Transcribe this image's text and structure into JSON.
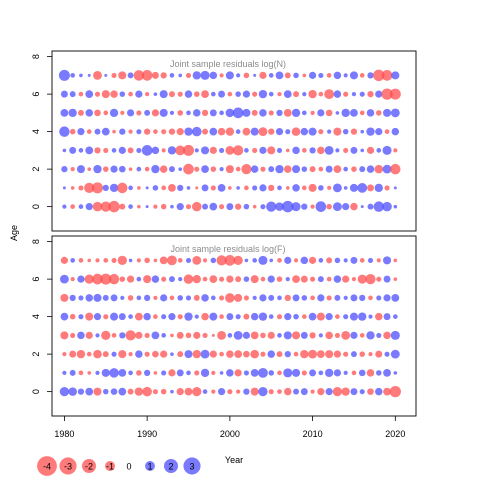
{
  "figure": {
    "ylabel": "Age",
    "xlabel": "Year"
  },
  "chart_data": [
    {
      "type": "scatter",
      "title": "Joint sample residuals log(N)",
      "xlim": [
        1978.5,
        2022.5
      ],
      "ylim": [
        -1.3,
        8.3
      ],
      "y_ticks": [
        0,
        2,
        4,
        6,
        8
      ],
      "x_ticks": [
        1980,
        1990,
        2000,
        2010,
        2020
      ],
      "years": [
        1980,
        2020
      ],
      "ages": [
        0,
        7
      ],
      "residuals": [
        [
          0.4,
          -0.5,
          0.5,
          1.2,
          -2.1,
          -2.4,
          -3.0,
          -0.8,
          0.5,
          -0.3,
          0.2,
          -0.4,
          -0.7,
          0.3,
          1.2,
          -0.6,
          -2.1,
          0.8,
          1.4,
          -0.6,
          1.1,
          -0.9,
          0.7,
          -0.3,
          0.6,
          2.4,
          1.7,
          3.0,
          1.9,
          0.9,
          -0.4,
          2.6,
          -0.7,
          1.8,
          1.2,
          -1.3,
          0.2,
          0.8,
          2.5,
          2.1,
          0.3
        ],
        [
          0.2,
          -0.3,
          -0.6,
          -2.4,
          -2.8,
          0.9,
          1.6,
          -2.5,
          0.5,
          -0.3,
          0.2,
          0.7,
          -0.5,
          -1.4,
          0.9,
          0.3,
          -0.2,
          1.1,
          -0.6,
          1.4,
          -0.3,
          0.3,
          -0.5,
          0.6,
          1.2,
          -0.9,
          0.5,
          -0.3,
          1.3,
          -0.5,
          -1.5,
          0.7,
          -0.4,
          1.8,
          0.3,
          1.5,
          2.2,
          -1.1,
          1.6,
          -0.6,
          0.2
        ],
        [
          0.9,
          -0.4,
          1.5,
          -0.3,
          1.6,
          -0.7,
          1.2,
          1.0,
          -0.3,
          0.5,
          -0.5,
          1.6,
          -1.3,
          0.8,
          0.3,
          -2.6,
          -0.6,
          1.4,
          -0.7,
          0.4,
          -1.5,
          -0.5,
          -2.4,
          1.3,
          -0.6,
          0.8,
          1.6,
          -1.3,
          1.5,
          0.7,
          -0.8,
          -0.5,
          1.1,
          -1.4,
          0.5,
          -0.7,
          0.8,
          1.3,
          -1.7,
          1.8,
          -2.5
        ],
        [
          0.3,
          1.1,
          0.5,
          1.4,
          -0.9,
          -0.6,
          0.5,
          1.2,
          -0.8,
          0.6,
          2.6,
          1.3,
          -0.4,
          1.6,
          -2.2,
          -2.8,
          0.4,
          1.5,
          -1.2,
          0.6,
          -1.8,
          -2.4,
          0.5,
          -0.6,
          1.2,
          -1.5,
          0.6,
          -0.3,
          1.3,
          -0.5,
          0.9,
          -1.3,
          1.8,
          0.4,
          -0.6,
          1.1,
          0.3,
          -1.2,
          0.5,
          1.9,
          -0.4
        ],
        [
          2.5,
          -0.7,
          1.2,
          -0.5,
          0.8,
          1.4,
          -0.3,
          0.9,
          -0.4,
          0.6,
          -0.9,
          -0.5,
          -0.6,
          -0.9,
          -1.2,
          1.6,
          2.1,
          -0.8,
          1.4,
          -1.3,
          -1.6,
          0.5,
          -1.4,
          1.5,
          -1.8,
          -0.9,
          1.2,
          0.6,
          -1.7,
          1.3,
          1.5,
          -0.6,
          0.4,
          -1.5,
          0.7,
          -0.9,
          0.3,
          1.6,
          1.2,
          -0.5,
          1.3
        ],
        [
          1.4,
          1.6,
          -0.8,
          1.3,
          -1.0,
          -0.5,
          1.6,
          -0.4,
          1.2,
          -0.6,
          0.8,
          -1.2,
          1.5,
          0.4,
          -0.7,
          0.5,
          1.3,
          -0.9,
          1.1,
          0.5,
          1.7,
          2.6,
          1.5,
          -0.8,
          1.3,
          -0.6,
          0.9,
          -1.4,
          1.6,
          0.5,
          -0.4,
          1.2,
          -1.0,
          0.3,
          1.6,
          1.4,
          -0.5,
          1.3,
          -0.7,
          1.5,
          1.8
        ],
        [
          1.1,
          0.8,
          -0.5,
          1.4,
          -0.6,
          -1.5,
          -1.3,
          0.7,
          -0.5,
          1.2,
          -0.4,
          0.3,
          1.5,
          -0.8,
          -0.6,
          1.3,
          -0.7,
          -1.4,
          0.5,
          1.1,
          -0.5,
          0.7,
          1.2,
          -0.6,
          1.6,
          0.5,
          -0.4,
          1.4,
          -0.8,
          0.4,
          -1.6,
          -0.5,
          -2.2,
          1.3,
          -0.6,
          0.4,
          0.6,
          -0.9,
          1.2,
          -2.9,
          -2.8
        ],
        [
          2.8,
          0.5,
          0.3,
          0.2,
          -1.8,
          0.2,
          -0.6,
          -1.5,
          0.8,
          -2.5,
          -2.6,
          -1.1,
          -0.9,
          0.5,
          0.3,
          -0.6,
          1.6,
          1.9,
          1.3,
          -0.4,
          1.5,
          0.4,
          -0.7,
          0.2,
          -1.2,
          0.5,
          1.4,
          -0.8,
          0.7,
          -0.3,
          1.2,
          0.6,
          -0.5,
          1.3,
          0.4,
          1.5,
          -0.5,
          0.9,
          -3.0,
          -2.6,
          1.5
        ]
      ]
    },
    {
      "type": "scatter",
      "title": "Joint sample residuals log(F)",
      "xlim": [
        1978.5,
        2022.5
      ],
      "ylim": [
        -1.3,
        8.3
      ],
      "y_ticks": [
        0,
        2,
        4,
        6,
        8
      ],
      "x_ticks": [
        1980,
        1990,
        2000,
        2010,
        2020
      ],
      "years": [
        1980,
        2020
      ],
      "ages": [
        0,
        7
      ],
      "residuals": [
        [
          2.0,
          1.7,
          0.9,
          1.4,
          -1.5,
          0.7,
          1.0,
          1.4,
          -0.8,
          -1.6,
          -2.1,
          -0.6,
          -0.7,
          0.3,
          -1.2,
          -1.4,
          -2.0,
          0.5,
          -0.4,
          1.2,
          -0.6,
          -0.4,
          0.9,
          -1.5,
          2.0,
          -0.6,
          -0.5,
          -1.3,
          0.8,
          1.1,
          -0.4,
          -1.2,
          1.2,
          -2.0,
          -1.6,
          1.1,
          0.6,
          -1.0,
          1.3,
          -1.4,
          -2.9
        ],
        [
          0.4,
          0.8,
          -0.5,
          -0.3,
          0.4,
          1.5,
          2.1,
          1.4,
          0.5,
          -0.7,
          0.9,
          -0.3,
          0.6,
          -1.2,
          1.1,
          0.5,
          -0.6,
          1.6,
          -0.4,
          0.3,
          1.3,
          -1.2,
          0.6,
          1.4,
          2.2,
          0.7,
          -0.5,
          1.9,
          1.5,
          -0.6,
          1.1,
          0.5,
          1.6,
          1.2,
          0.4,
          -0.5,
          1.0,
          -1.3,
          0.7,
          1.4,
          0.3
        ],
        [
          -0.4,
          -1.1,
          -1.6,
          -0.5,
          -1.7,
          -0.8,
          0.6,
          -1.5,
          -0.4,
          1.3,
          -0.6,
          -1.0,
          -1.2,
          0.3,
          -0.8,
          1.5,
          -1.6,
          1.8,
          -1.2,
          -0.5,
          -1.3,
          -1.4,
          -1.0,
          -1.7,
          -0.6,
          1.3,
          -0.8,
          0.9,
          -0.5,
          -1.6,
          -1.8,
          -1.4,
          -1.5,
          -1.2,
          -0.6,
          0.8,
          -0.7,
          -0.4,
          -1.1,
          0.6,
          1.8
        ],
        [
          -1.5,
          -0.6,
          1.3,
          -1.2,
          0.4,
          -2.0,
          -0.5,
          0.9,
          -2.4,
          -1.2,
          -0.6,
          1.4,
          0.5,
          -0.3,
          -1.1,
          -0.7,
          -1.2,
          -0.6,
          -0.2,
          -1.8,
          0.5,
          1.8,
          1.2,
          -1.4,
          -0.7,
          -1.2,
          0.5,
          1.5,
          -1.5,
          1.1,
          -0.9,
          0.4,
          -1.3,
          -0.6,
          -1.8,
          1.2,
          -0.5,
          1.6,
          0.6,
          -1.3,
          1.9
        ],
        [
          1.4,
          -0.7,
          0.6,
          -1.5,
          1.2,
          -0.6,
          1.5,
          1.1,
          0.5,
          -1.4,
          1.3,
          -0.5,
          0.6,
          1.2,
          -0.6,
          1.6,
          0.4,
          -1.3,
          1.5,
          -0.5,
          1.1,
          0.6,
          -0.8,
          1.3,
          1.6,
          0.5,
          -0.6,
          1.2,
          0.7,
          -0.5,
          1.4,
          -1.5,
          1.2,
          -0.5,
          0.6,
          1.5,
          1.6,
          0.4,
          -1.3,
          1.1,
          0.5
        ],
        [
          -1.5,
          0.9,
          0.6,
          1.3,
          1.5,
          0.8,
          1.1,
          0.4,
          -0.7,
          0.5,
          0.9,
          -0.4,
          1.2,
          -0.5,
          0.7,
          0.6,
          -0.8,
          1.3,
          0.5,
          -0.6,
          -2.1,
          -1.5,
          -0.6,
          0.4,
          1.2,
          0.8,
          0.5,
          -0.9,
          1.1,
          0.7,
          -0.5,
          1.2,
          -0.6,
          0.8,
          0.4,
          1.1,
          0.9,
          -0.5,
          0.6,
          1.2,
          1.4
        ],
        [
          1.8,
          -0.4,
          1.2,
          -2.0,
          -2.6,
          -2.8,
          -2.5,
          -0.7,
          -1.2,
          0.5,
          -1.5,
          1.3,
          -0.6,
          0.8,
          0.4,
          -2.1,
          -1.6,
          -0.5,
          -1.4,
          -0.6,
          -1.2,
          -0.8,
          0.7,
          -1.5,
          -0.5,
          1.2,
          -0.7,
          0.4,
          -1.4,
          -1.1,
          -0.6,
          0.8,
          -0.5,
          1.3,
          -1.2,
          -0.4,
          -1.9,
          -2.4,
          -0.6,
          1.1,
          -0.3
        ],
        [
          -1.2,
          0.5,
          -0.5,
          -0.3,
          -0.4,
          -0.5,
          -0.6,
          -2.0,
          0.3,
          -0.4,
          -0.7,
          -0.3,
          -1.4,
          -2.2,
          -0.5,
          0.6,
          -1.8,
          -0.4,
          0.7,
          -2.4,
          -2.6,
          -2.0,
          0.3,
          0.5,
          1.9,
          0.3,
          -0.5,
          1.2,
          -0.4,
          1.3,
          -1.2,
          0.5,
          -0.8,
          0.7,
          0.4,
          1.1,
          -0.5,
          0.6,
          -0.4,
          1.5,
          -0.3
        ]
      ]
    }
  ],
  "legend": {
    "entries": [
      {
        "value": -4,
        "label": "-4"
      },
      {
        "value": -3,
        "label": "-3"
      },
      {
        "value": -2,
        "label": "-2"
      },
      {
        "value": -1,
        "label": "-1"
      },
      {
        "value": 0,
        "label": "0"
      },
      {
        "value": 1,
        "label": "1"
      },
      {
        "value": 2,
        "label": "2"
      },
      {
        "value": 3,
        "label": "3"
      }
    ]
  },
  "colors": {
    "positive": "#4D4DFF",
    "negative": "#FF4D4D",
    "title": "#8C8C8C",
    "axis": "#000000"
  }
}
